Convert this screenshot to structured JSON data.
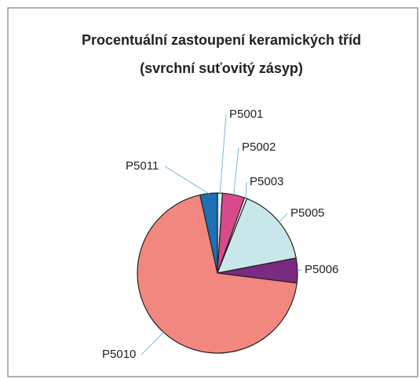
{
  "chart_data": {
    "type": "pie",
    "title": "Procentuální zastoupení keramických tříd",
    "subtitle": "(svrchní suťovitý zásyp)",
    "categories": [
      "P5001",
      "P5002",
      "P5003",
      "P5005",
      "P5006",
      "P5010",
      "P5011"
    ],
    "values": [
      1,
      4.5,
      0.5,
      16,
      5,
      69.5,
      3.5
    ],
    "colors": [
      "#d8eef2",
      "#d84a8c",
      "#ffffff",
      "#c9e7ea",
      "#7a2a80",
      "#f28780",
      "#1f70b4"
    ]
  }
}
